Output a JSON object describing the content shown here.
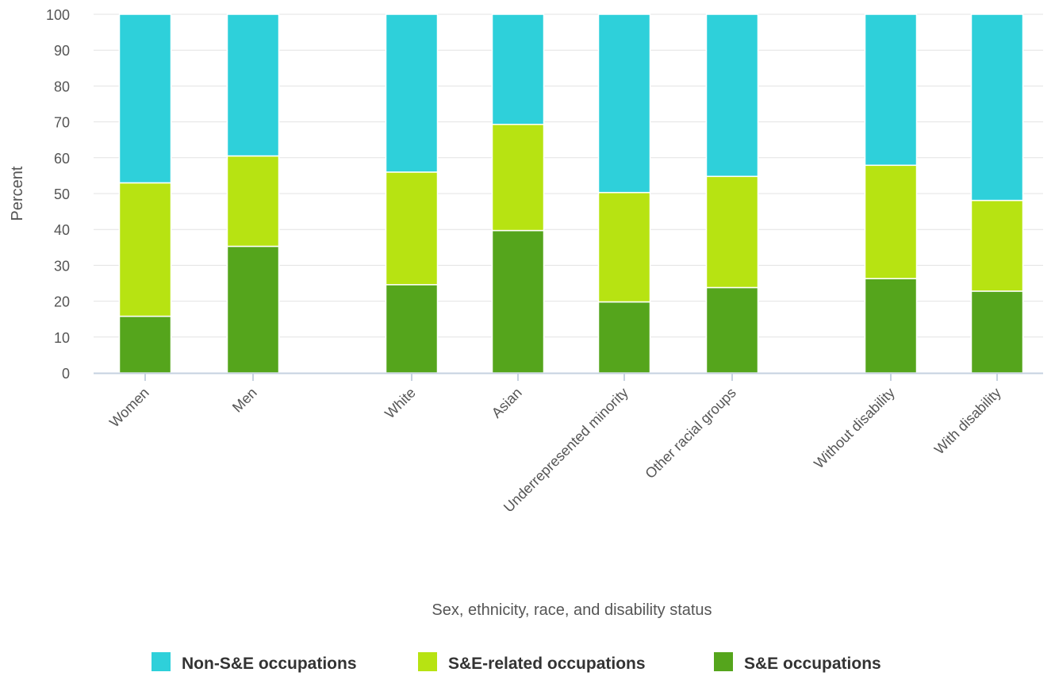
{
  "chart_data": {
    "type": "bar",
    "stacked": true,
    "categories": [
      "Women",
      "Men",
      "White",
      "Asian",
      "Underrepresented minority",
      "Other racial groups",
      "Without disability",
      "With disability"
    ],
    "category_groups": [
      [
        0,
        1
      ],
      [
        2,
        3,
        4,
        5
      ],
      [
        6,
        7
      ]
    ],
    "series": [
      {
        "name": "S&E occupations",
        "color": "#55a51c",
        "values": [
          15.8,
          35.3,
          24.6,
          39.7,
          19.8,
          23.8,
          26.3,
          22.8
        ]
      },
      {
        "name": "S&E-related occupations",
        "color": "#b7e312",
        "values": [
          37.2,
          25.2,
          31.4,
          29.6,
          30.5,
          31.0,
          31.6,
          25.3
        ]
      },
      {
        "name": "Non-S&E occupations",
        "color": "#2ed0da",
        "values": [
          47.0,
          39.5,
          44.0,
          30.7,
          49.7,
          45.2,
          42.1,
          51.9
        ]
      }
    ],
    "xlabel": "Sex, ethnicity, race, and disability status",
    "ylabel": "Percent",
    "ylim": [
      0,
      100
    ],
    "yticks": [
      0,
      10,
      20,
      30,
      40,
      50,
      60,
      70,
      80,
      90,
      100
    ],
    "grid": true,
    "legend_order": [
      "Non-S&E occupations",
      "S&E-related occupations",
      "S&E occupations"
    ],
    "legend_position": "bottom"
  }
}
